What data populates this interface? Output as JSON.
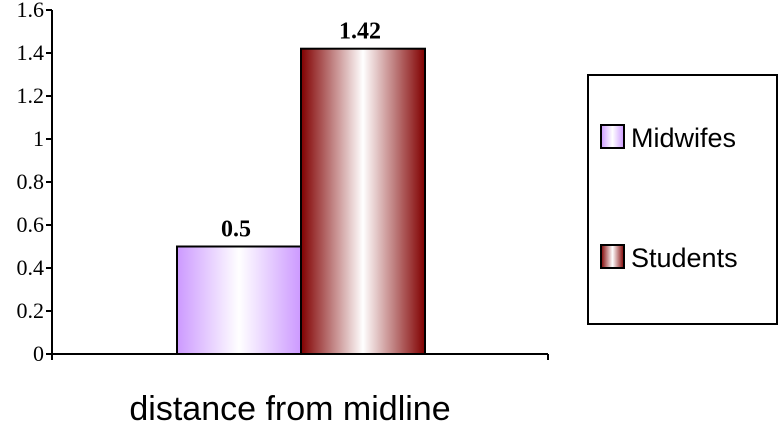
{
  "chart_data": {
    "type": "bar",
    "categories": [
      "distance from midline"
    ],
    "xlabel": "distance from midline",
    "ylim": [
      0,
      1.6
    ],
    "yticks": [
      0,
      0.2,
      0.4,
      0.6,
      0.8,
      1,
      1.2,
      1.4,
      1.6
    ],
    "ytick_labels": [
      "0",
      "0.2",
      "0.4",
      "0.6",
      "0.8",
      "1",
      "1.2",
      "1.4",
      "1.6"
    ],
    "series": [
      {
        "name": "Midwifes",
        "values": [
          0.5
        ],
        "label": "0.5",
        "color": "#cc99ff"
      },
      {
        "name": "Students",
        "values": [
          1.42
        ],
        "label": "1.42",
        "color": "#800000"
      }
    ],
    "grid": false,
    "legend": "right"
  }
}
